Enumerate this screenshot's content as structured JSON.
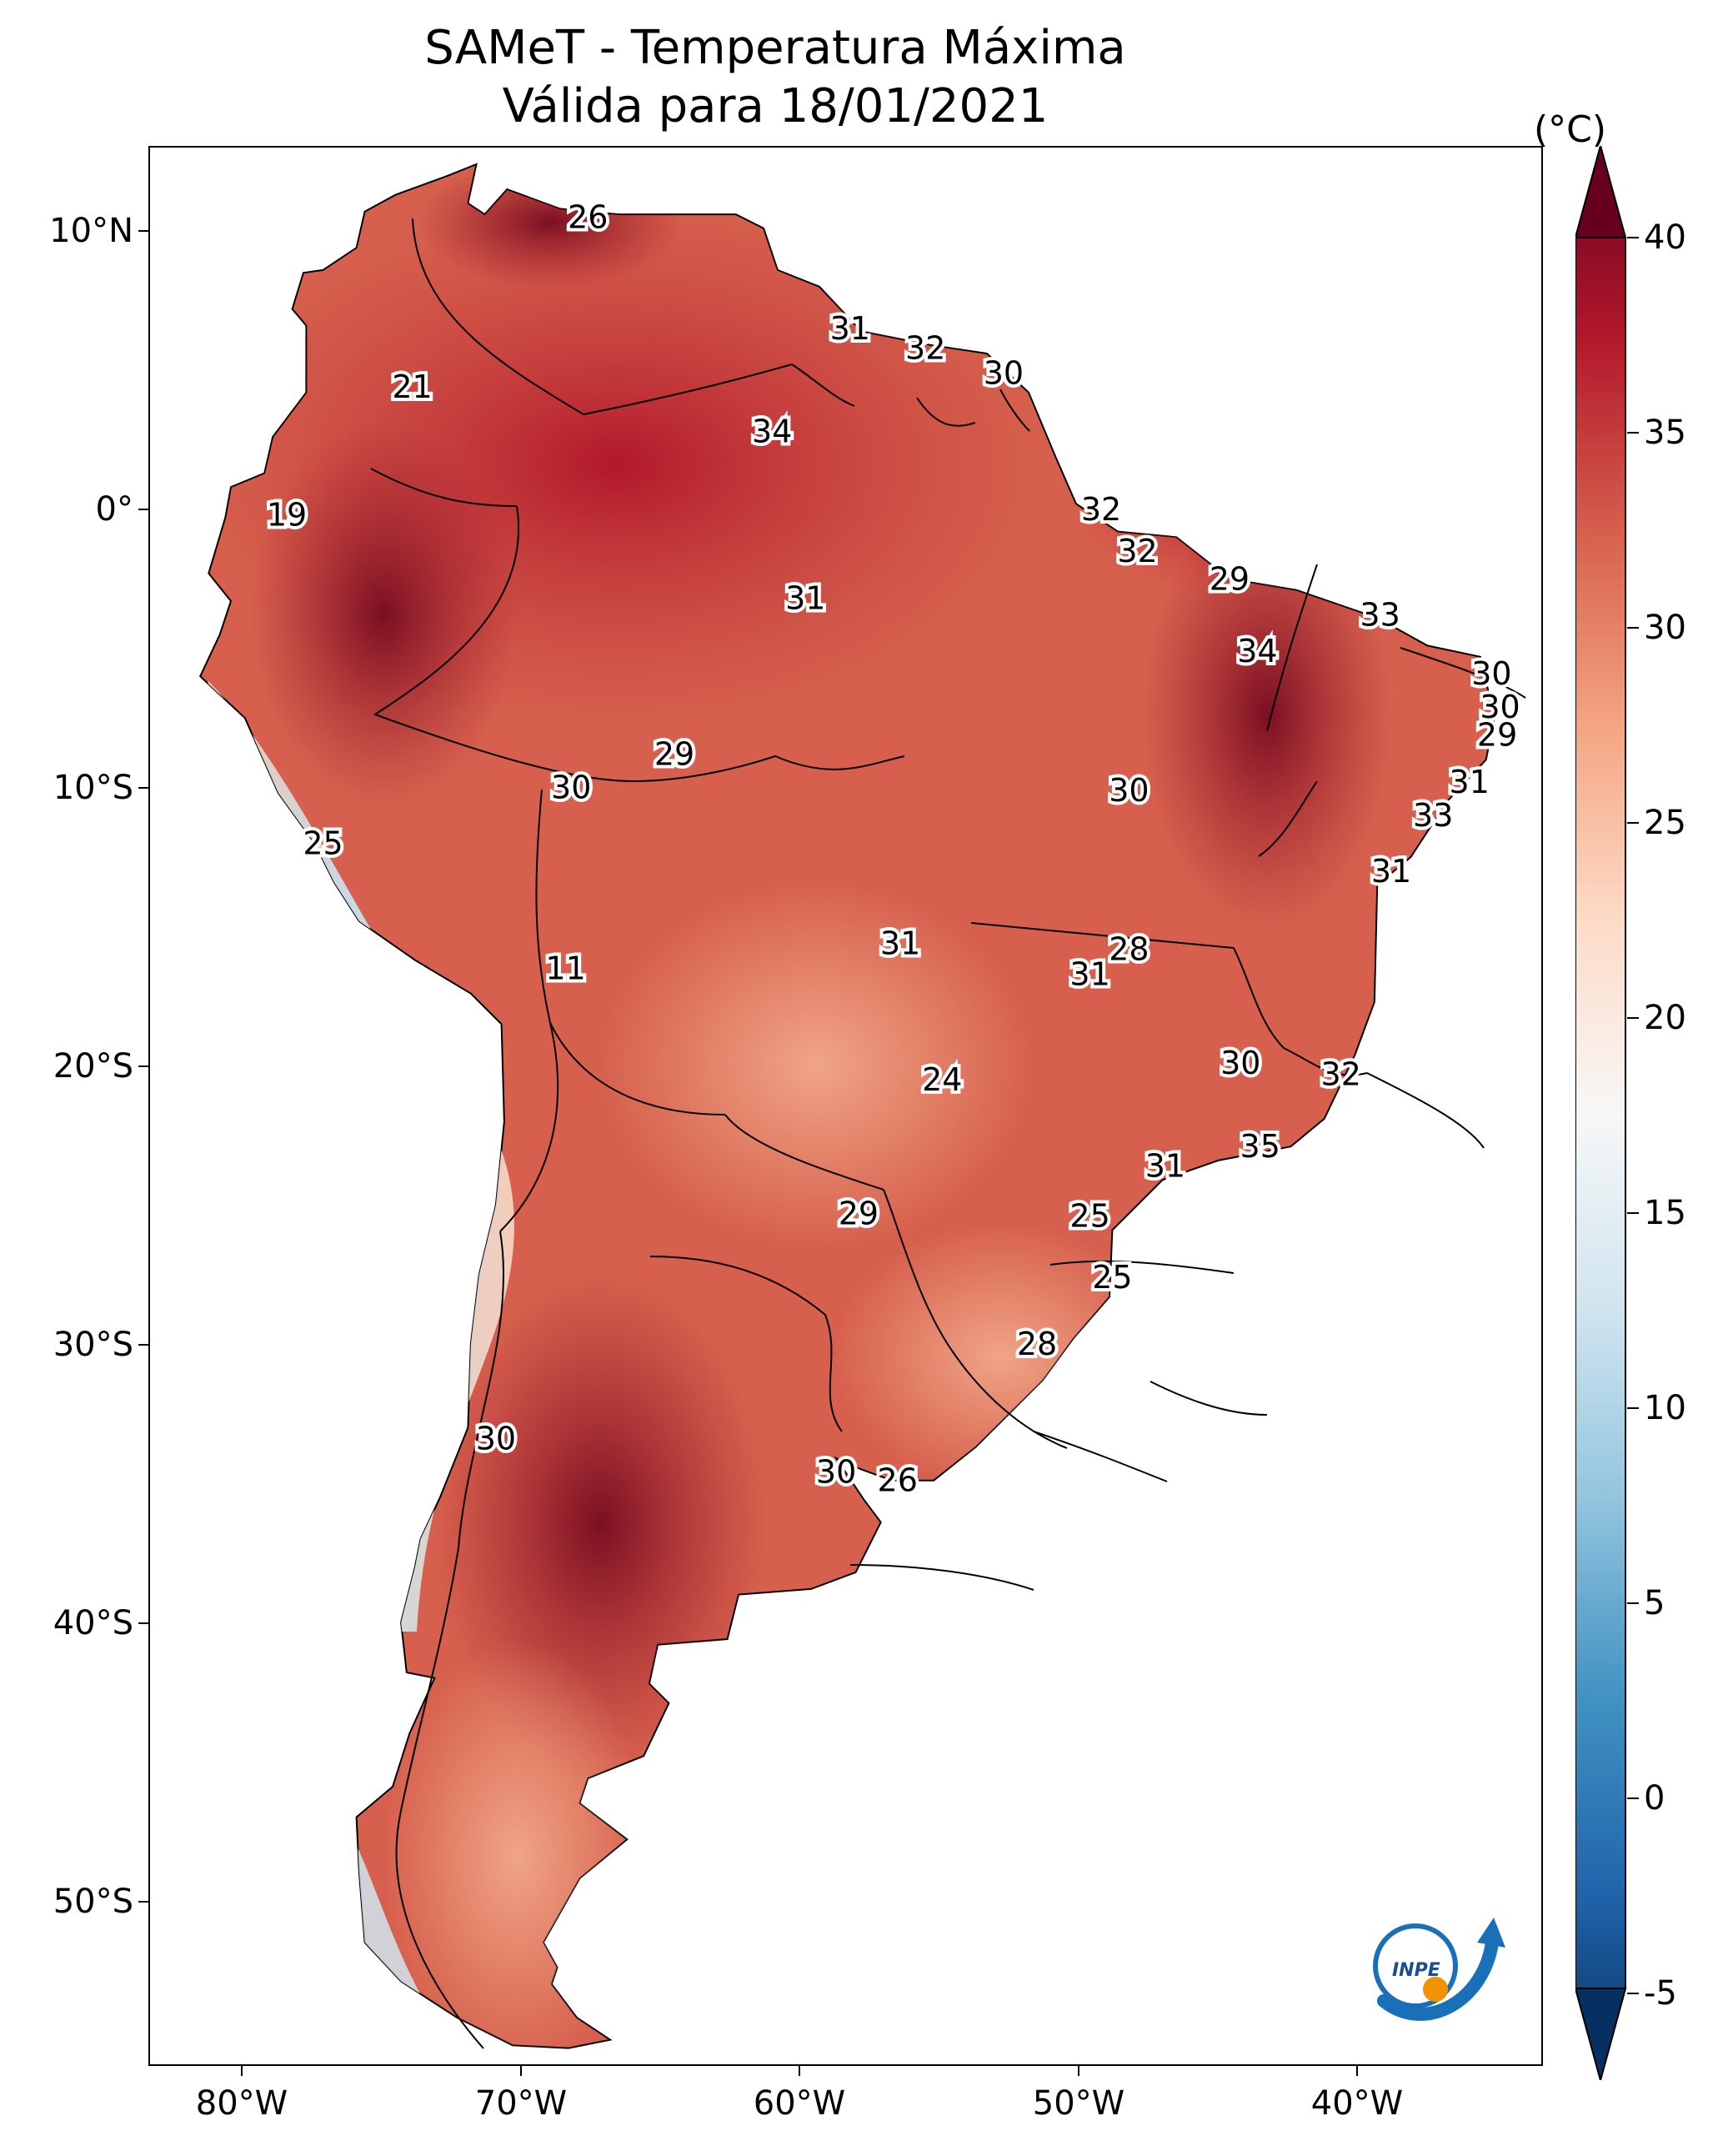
{
  "title": {
    "line1": "SAMeT - Temperatura Máxima",
    "line2": "Válida para 18/01/2021"
  },
  "map": {
    "region": "South America",
    "lon_range": [
      -83,
      -33
    ],
    "lat_range": [
      -56,
      13
    ],
    "lat_ticks": [
      "10°N",
      "0°",
      "10°S",
      "20°S",
      "30°S",
      "40°S",
      "50°S"
    ],
    "lon_ticks": [
      "80°W",
      "70°W",
      "60°W",
      "50°W",
      "40°W"
    ]
  },
  "colorbar": {
    "unit": "(°C)",
    "ticks": [
      "40",
      "35",
      "30",
      "25",
      "20",
      "15",
      "10",
      "5",
      "0",
      "-5"
    ],
    "min": -5,
    "max": 40,
    "colors": [
      "#053061",
      "#2166ac",
      "#4393c3",
      "#92c5de",
      "#d1e5f0",
      "#f7f7f7",
      "#fddbc7",
      "#f4a582",
      "#d6604d",
      "#b2182b",
      "#67001f"
    ]
  },
  "station_labels": [
    {
      "value": "26",
      "lon": -67.3,
      "lat": 10.5
    },
    {
      "value": "21",
      "lon": -73.6,
      "lat": 4.4
    },
    {
      "value": "19",
      "lon": -78.1,
      "lat": -0.2
    },
    {
      "value": "31",
      "lon": -57.9,
      "lat": 6.5
    },
    {
      "value": "32",
      "lon": -55.2,
      "lat": 5.8
    },
    {
      "value": "30",
      "lon": -52.4,
      "lat": 4.9
    },
    {
      "value": "34",
      "lon": -60.7,
      "lat": 2.8
    },
    {
      "value": "32",
      "lon": -48.9,
      "lat": 0.0
    },
    {
      "value": "32",
      "lon": -47.6,
      "lat": -1.5
    },
    {
      "value": "29",
      "lon": -44.3,
      "lat": -2.5
    },
    {
      "value": "33",
      "lon": -38.9,
      "lat": -3.8
    },
    {
      "value": "34",
      "lon": -43.3,
      "lat": -5.1
    },
    {
      "value": "30",
      "lon": -34.9,
      "lat": -5.9
    },
    {
      "value": "30",
      "lon": -34.6,
      "lat": -7.1
    },
    {
      "value": "29",
      "lon": -34.7,
      "lat": -8.1
    },
    {
      "value": "31",
      "lon": -35.7,
      "lat": -9.8
    },
    {
      "value": "33",
      "lon": -37.0,
      "lat": -11.0
    },
    {
      "value": "31",
      "lon": -38.5,
      "lat": -13.0
    },
    {
      "value": "31",
      "lon": -59.5,
      "lat": -3.2
    },
    {
      "value": "29",
      "lon": -64.2,
      "lat": -8.8
    },
    {
      "value": "30",
      "lon": -67.9,
      "lat": -10.0
    },
    {
      "value": "30",
      "lon": -47.9,
      "lat": -10.1
    },
    {
      "value": "25",
      "lon": -76.8,
      "lat": -12.0
    },
    {
      "value": "11",
      "lon": -68.1,
      "lat": -16.5
    },
    {
      "value": "31",
      "lon": -56.1,
      "lat": -15.6
    },
    {
      "value": "28",
      "lon": -47.9,
      "lat": -15.8
    },
    {
      "value": "31",
      "lon": -49.3,
      "lat": -16.7
    },
    {
      "value": "24",
      "lon": -54.6,
      "lat": -20.5
    },
    {
      "value": "30",
      "lon": -43.9,
      "lat": -19.9
    },
    {
      "value": "32",
      "lon": -40.3,
      "lat": -20.3
    },
    {
      "value": "35",
      "lon": -43.2,
      "lat": -22.9
    },
    {
      "value": "31",
      "lon": -46.6,
      "lat": -23.6
    },
    {
      "value": "29",
      "lon": -57.6,
      "lat": -25.3
    },
    {
      "value": "25",
      "lon": -49.3,
      "lat": -25.4
    },
    {
      "value": "25",
      "lon": -48.5,
      "lat": -27.6
    },
    {
      "value": "28",
      "lon": -51.2,
      "lat": -30.0
    },
    {
      "value": "30",
      "lon": -70.6,
      "lat": -33.4
    },
    {
      "value": "30",
      "lon": -58.4,
      "lat": -34.6
    },
    {
      "value": "26",
      "lon": -56.2,
      "lat": -34.9
    }
  ],
  "logo_text": "INPE"
}
